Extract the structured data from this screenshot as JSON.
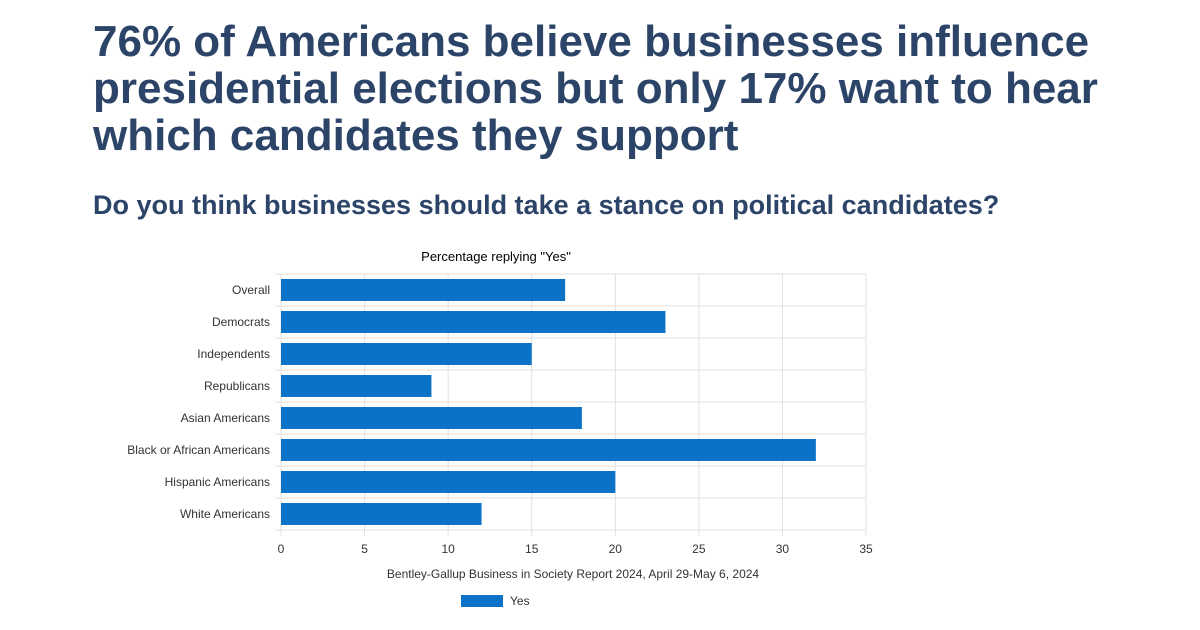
{
  "headline": "76% of Americans believe businesses influence presidential elections but only 17% want to hear which candidates they support",
  "question": "Do you think businesses should take a stance on political candidates?",
  "chart_data": {
    "type": "bar",
    "orientation": "horizontal",
    "title": "Percentage replying \"Yes\"",
    "source": "Bentley-Gallup Business in Society Report 2024, April 29-May 6, 2024",
    "categories": [
      "Overall",
      "Democrats",
      "Independents",
      "Republicans",
      "Asian Americans",
      "Black or African Americans",
      "Hispanic Americans",
      "White Americans"
    ],
    "series": [
      {
        "name": "Yes",
        "values": [
          17,
          23,
          15,
          9,
          18,
          32,
          20,
          12
        ],
        "color": "#0a72c7"
      }
    ],
    "xlim": [
      0,
      35
    ],
    "xticks": [
      0,
      5,
      10,
      15,
      20,
      25,
      30,
      35
    ],
    "grid": true,
    "legend_position": "bottom"
  }
}
